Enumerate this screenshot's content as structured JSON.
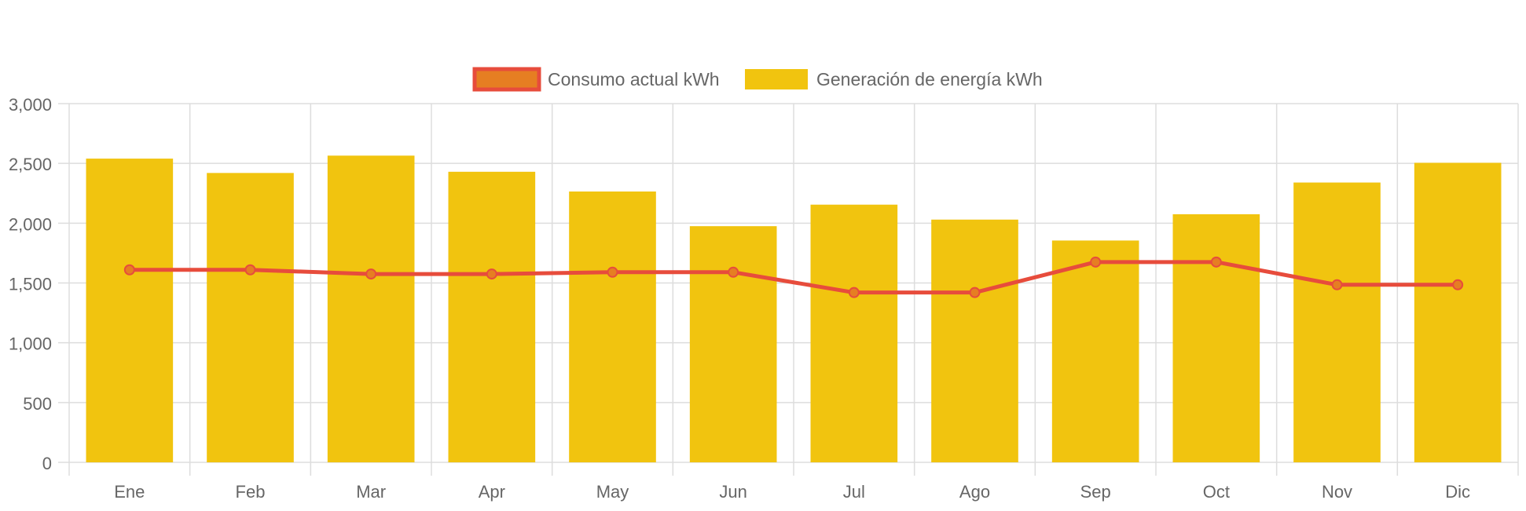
{
  "colors": {
    "bar_fill": "#F1C40F",
    "line_stroke": "#E74C3C",
    "line_point_fill": "#E67E22",
    "grid": "#DDDDDD",
    "text": "#666666"
  },
  "chart_data": {
    "type": "bar",
    "title": "",
    "xlabel": "",
    "ylabel": "",
    "ylim": [
      0,
      3000
    ],
    "yticks": [
      "0",
      "500",
      "1,000",
      "1,500",
      "2,000",
      "2,500",
      "3,000"
    ],
    "legend_position": "top-center",
    "grid": true,
    "categories": [
      "Ene",
      "Feb",
      "Mar",
      "Apr",
      "May",
      "Jun",
      "Jul",
      "Ago",
      "Sep",
      "Oct",
      "Nov",
      "Dic"
    ],
    "series": [
      {
        "name": "Consumo actual kWh",
        "type": "line",
        "color": "#E74C3C",
        "point_color": "#E67E22",
        "values": [
          1610,
          1610,
          1575,
          1575,
          1590,
          1590,
          1420,
          1420,
          1675,
          1675,
          1485,
          1485
        ]
      },
      {
        "name": "Generación de energía kWh",
        "type": "bar",
        "color": "#F1C40F",
        "values": [
          2540,
          2420,
          2565,
          2430,
          2265,
          1975,
          2155,
          2030,
          1855,
          2075,
          2340,
          2505
        ]
      }
    ]
  }
}
